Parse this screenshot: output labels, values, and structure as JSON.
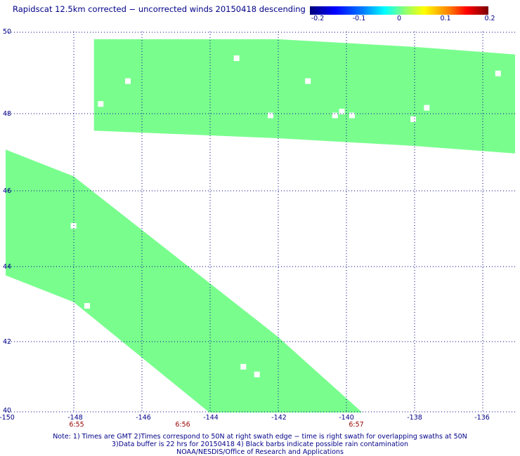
{
  "title": "Rapidscat 12.5km corrected − uncorrected winds 20150418 descending",
  "colorbar": {
    "labels": [
      "-0.2",
      "-0.1",
      "0",
      "0.1",
      "0.2"
    ],
    "colors": [
      "#00007a",
      "#0000ff",
      "#00ffff",
      "#80ff80",
      "#ffff00",
      "#ff8000",
      "#7a0000"
    ]
  },
  "axes": {
    "y_ticks": [
      "50",
      "48",
      "46",
      "44",
      "42",
      "40"
    ],
    "x_ticks": [
      "-150",
      "-148",
      "-146",
      "-144",
      "-142",
      "-140",
      "-138",
      "-136"
    ],
    "time_labels": [
      "6:55",
      "6:56",
      "6:57"
    ]
  },
  "map": {
    "lon_range": [
      -150,
      -135
    ],
    "lat_range": [
      40,
      50
    ],
    "fill_color": "#79fe8e",
    "swath_north_upper_left": [
      [
        -147.4,
        49.8
      ],
      [
        -142.0,
        49.8
      ],
      [
        -138.0,
        49.6
      ],
      [
        -135.0,
        49.4
      ]
    ],
    "swath_north_lower_left": [
      [
        -147.4,
        47.4
      ],
      [
        -142.0,
        47.2
      ],
      [
        -138.0,
        47.0
      ],
      [
        -135.0,
        46.8
      ]
    ],
    "swath_south_upper_edge": [
      [
        -150,
        46.9
      ],
      [
        -148.0,
        46.2
      ],
      [
        -142.0,
        42.0
      ],
      [
        -139.5,
        40.0
      ]
    ],
    "swath_south_lower_edge": [
      [
        -150,
        43.6
      ],
      [
        -148.0,
        42.9
      ],
      [
        -144.0,
        40.0
      ]
    ],
    "no_data_cells": [
      [
        -143.2,
        49.3
      ],
      [
        -146.4,
        48.7
      ],
      [
        -141.1,
        48.7
      ],
      [
        -147.2,
        48.1
      ],
      [
        -142.2,
        47.8
      ],
      [
        -140.3,
        47.8
      ],
      [
        -139.8,
        47.8
      ],
      [
        -140.1,
        47.9
      ],
      [
        -138.0,
        47.7
      ],
      [
        -137.6,
        48.0
      ],
      [
        -135.5,
        48.9
      ],
      [
        -148.0,
        44.9
      ],
      [
        -147.6,
        42.8
      ],
      [
        -143.0,
        41.2
      ],
      [
        -142.6,
        41.0
      ]
    ]
  },
  "notes": [
    "Note: 1) Times are GMT 2)Times correspond to 50N at right swath edge − time is right swath for overlapping swaths at 50N",
    "3)Data buffer is 22 hrs for 20150418 4) Black barbs indicate possible rain contamination",
    "NOAA/NESDIS/Office of Research and Applications"
  ]
}
